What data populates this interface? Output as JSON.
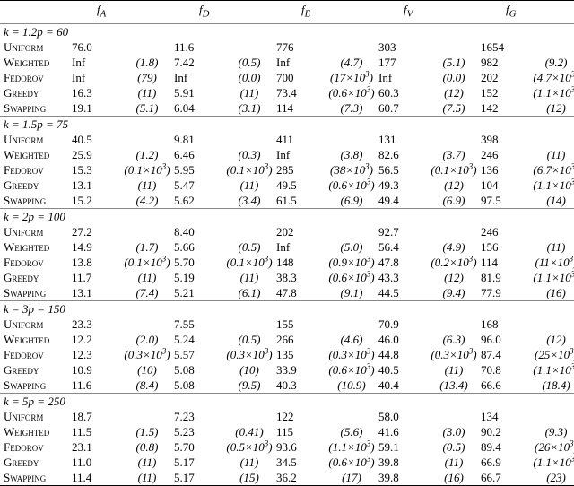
{
  "columns": [
    "f_A",
    "f_D",
    "f_E",
    "f_V",
    "f_G"
  ],
  "column_display": [
    {
      "base": "f",
      "sub": "A"
    },
    {
      "base": "f",
      "sub": "D"
    },
    {
      "base": "f",
      "sub": "E"
    },
    {
      "base": "f",
      "sub": "V"
    },
    {
      "base": "f",
      "sub": "G"
    }
  ],
  "groups": [
    {
      "header": "k = 1.2p = 60",
      "rows": [
        {
          "method": "Uniform",
          "cells": [
            [
              "76.0",
              ""
            ],
            [
              "11.6",
              ""
            ],
            [
              "776",
              ""
            ],
            [
              "303",
              ""
            ],
            [
              "1654",
              ""
            ]
          ]
        },
        {
          "method": "Weighted",
          "cells": [
            [
              "Inf",
              "(1.8)"
            ],
            [
              "7.42",
              "(0.5)"
            ],
            [
              "Inf",
              "(4.7)"
            ],
            [
              "177",
              "(5.1)"
            ],
            [
              "982",
              "(9.2)"
            ]
          ]
        },
        {
          "method": "Fedorov",
          "cells": [
            [
              "Inf",
              "(79)"
            ],
            [
              "Inf",
              "(0.0)"
            ],
            [
              "700",
              "(17×10^3)"
            ],
            [
              "Inf",
              "(0.0)"
            ],
            [
              "202",
              "(4.7×10^3)"
            ]
          ]
        },
        {
          "method": "Greedy",
          "cells": [
            [
              "16.3",
              "(11)"
            ],
            [
              "5.91",
              "(11)"
            ],
            [
              "73.4",
              "(0.6×10^3)"
            ],
            [
              "60.3",
              "(12)"
            ],
            [
              "152",
              "(1.1×10^3)"
            ]
          ]
        },
        {
          "method": "Swapping",
          "cells": [
            [
              "19.1",
              "(5.1)"
            ],
            [
              "6.04",
              "(3.1)"
            ],
            [
              "114",
              "(7.3)"
            ],
            [
              "60.7",
              "(7.5)"
            ],
            [
              "142",
              "(12)"
            ]
          ]
        }
      ]
    },
    {
      "header": "k = 1.5p = 75",
      "rows": [
        {
          "method": "Uniform",
          "cells": [
            [
              "40.5",
              ""
            ],
            [
              "9.81",
              ""
            ],
            [
              "411",
              ""
            ],
            [
              "131",
              ""
            ],
            [
              "398",
              ""
            ]
          ]
        },
        {
          "method": "Weighted",
          "cells": [
            [
              "25.9",
              "(1.2)"
            ],
            [
              "6.46",
              "(0.3)"
            ],
            [
              "Inf",
              "(3.8)"
            ],
            [
              "82.6",
              "(3.7)"
            ],
            [
              "246",
              "(11)"
            ]
          ]
        },
        {
          "method": "Fedorov",
          "cells": [
            [
              "15.3",
              "(0.1×10^3)"
            ],
            [
              "5.95",
              "(0.1×10^3)"
            ],
            [
              "285",
              "(38×10^3)"
            ],
            [
              "56.5",
              "(0.1×10^3)"
            ],
            [
              "136",
              "(6.7×10^3)"
            ]
          ]
        },
        {
          "method": "Greedy",
          "cells": [
            [
              "13.1",
              "(11)"
            ],
            [
              "5.47",
              "(11)"
            ],
            [
              "49.5",
              "(0.6×10^3)"
            ],
            [
              "49.3",
              "(12)"
            ],
            [
              "104",
              "(1.1×10^3)"
            ]
          ]
        },
        {
          "method": "Swapping",
          "cells": [
            [
              "15.2",
              "(4.2)"
            ],
            [
              "5.62",
              "(3.4)"
            ],
            [
              "61.5",
              "(6.9)"
            ],
            [
              "49.4",
              "(6.9)"
            ],
            [
              "97.5",
              "(14)"
            ]
          ]
        }
      ]
    },
    {
      "header": "k = 2p = 100",
      "rows": [
        {
          "method": "Uniform",
          "cells": [
            [
              "27.2",
              ""
            ],
            [
              "8.40",
              ""
            ],
            [
              "202",
              ""
            ],
            [
              "92.7",
              ""
            ],
            [
              "246",
              ""
            ]
          ]
        },
        {
          "method": "Weighted",
          "cells": [
            [
              "14.9",
              "(1.7)"
            ],
            [
              "5.66",
              "(0.5)"
            ],
            [
              "Inf",
              "(5.0)"
            ],
            [
              "56.4",
              "(4.9)"
            ],
            [
              "156",
              "(11)"
            ]
          ]
        },
        {
          "method": "Fedorov",
          "cells": [
            [
              "13.8",
              "(0.1×10^3)"
            ],
            [
              "5.70",
              "(0.1×10^3)"
            ],
            [
              "148",
              "(0.9×10^3)"
            ],
            [
              "47.8",
              "(0.2×10^3)"
            ],
            [
              "114",
              "(11×10^3)"
            ]
          ]
        },
        {
          "method": "Greedy",
          "cells": [
            [
              "11.7",
              "(11)"
            ],
            [
              "5.19",
              "(11)"
            ],
            [
              "38.3",
              "(0.6×10^3)"
            ],
            [
              "43.3",
              "(12)"
            ],
            [
              "81.9",
              "(1.1×10^3)"
            ]
          ]
        },
        {
          "method": "Swapping",
          "cells": [
            [
              "13.1",
              "(7.4)"
            ],
            [
              "5.21",
              "(6.1)"
            ],
            [
              "47.8",
              "(9.1)"
            ],
            [
              "44.5",
              "(9.4)"
            ],
            [
              "77.9",
              "(16)"
            ]
          ]
        }
      ]
    },
    {
      "header": "k = 3p = 150",
      "rows": [
        {
          "method": "Uniform",
          "cells": [
            [
              "23.3",
              ""
            ],
            [
              "7.55",
              ""
            ],
            [
              "155",
              ""
            ],
            [
              "70.9",
              ""
            ],
            [
              "168",
              ""
            ]
          ]
        },
        {
          "method": "Weighted",
          "cells": [
            [
              "12.2",
              "(2.0)"
            ],
            [
              "5.24",
              "(0.5)"
            ],
            [
              "266",
              "(4.6)"
            ],
            [
              "46.0",
              "(6.3)"
            ],
            [
              "96.0",
              "(12)"
            ]
          ]
        },
        {
          "method": "Fedorov",
          "cells": [
            [
              "12.3",
              "(0.3×10^3)"
            ],
            [
              "5.57",
              "(0.3×10^3)"
            ],
            [
              "135",
              "(0.3×10^3)"
            ],
            [
              "44.8",
              "(0.3×10^3)"
            ],
            [
              "87.4",
              "(25×10^3)"
            ]
          ]
        },
        {
          "method": "Greedy",
          "cells": [
            [
              "10.9",
              "(10)"
            ],
            [
              "5.08",
              "(10)"
            ],
            [
              "33.9",
              "(0.6×10^3)"
            ],
            [
              "40.5",
              "(11)"
            ],
            [
              "70.8",
              "(1.1×10^3)"
            ]
          ]
        },
        {
          "method": "Swapping",
          "cells": [
            [
              "11.6",
              "(8.4)"
            ],
            [
              "5.08",
              "(9.5)"
            ],
            [
              "40.3",
              "(10.9)"
            ],
            [
              "40.4",
              "(13.4)"
            ],
            [
              "66.6",
              "(18.4)"
            ]
          ]
        }
      ]
    },
    {
      "header": "k = 5p = 250",
      "rows": [
        {
          "method": "Uniform",
          "cells": [
            [
              "18.7",
              ""
            ],
            [
              "7.23",
              ""
            ],
            [
              "122",
              ""
            ],
            [
              "58.0",
              ""
            ],
            [
              "134",
              ""
            ]
          ]
        },
        {
          "method": "Weighted",
          "cells": [
            [
              "11.5",
              "(1.5)"
            ],
            [
              "5.23",
              "(0.41)"
            ],
            [
              "115",
              "(5.6)"
            ],
            [
              "41.6",
              "(3.0)"
            ],
            [
              "90.2",
              "(9.3)"
            ]
          ]
        },
        {
          "method": "Fedorov",
          "cells": [
            [
              "23.1",
              "(0.8)"
            ],
            [
              "5.70",
              "(0.5×10^3)"
            ],
            [
              "93.6",
              "(1.1×10^3)"
            ],
            [
              "59.1",
              "(0.5)"
            ],
            [
              "89.4",
              "(26×10^3)"
            ]
          ]
        },
        {
          "method": "Greedy",
          "cells": [
            [
              "11.0",
              "(11)"
            ],
            [
              "5.17",
              "(11)"
            ],
            [
              "34.5",
              "(0.6×10^3)"
            ],
            [
              "39.8",
              "(11)"
            ],
            [
              "66.9",
              "(1.1×10^3)"
            ]
          ]
        },
        {
          "method": "Swapping",
          "cells": [
            [
              "11.4",
              "(11)"
            ],
            [
              "5.17",
              "(15)"
            ],
            [
              "36.2",
              "(17)"
            ],
            [
              "39.8",
              "(16)"
            ],
            [
              "66.7",
              "(23)"
            ]
          ]
        }
      ]
    }
  ]
}
